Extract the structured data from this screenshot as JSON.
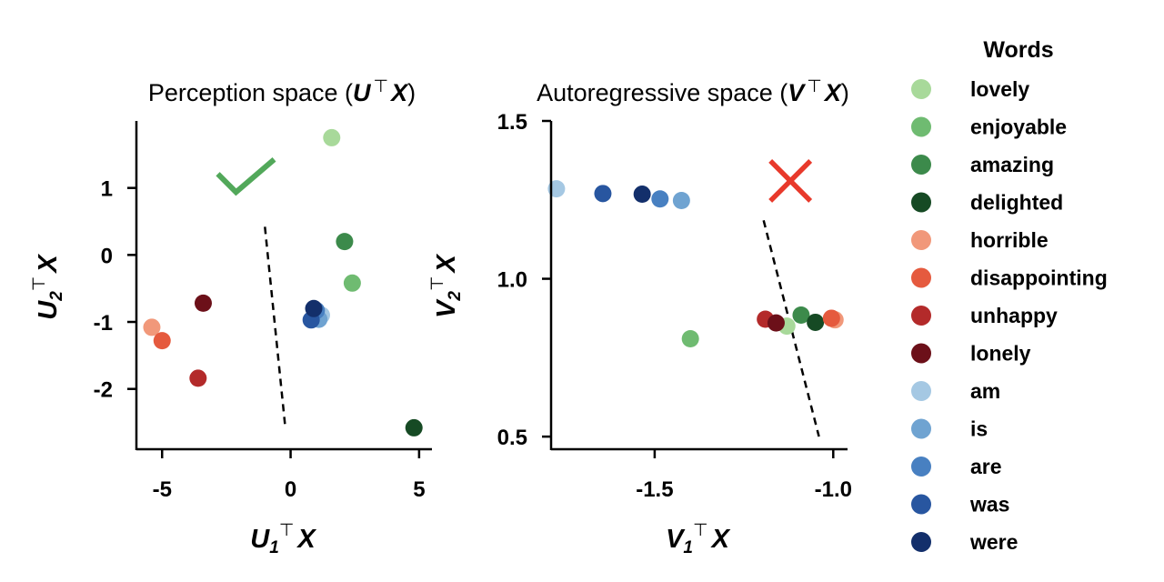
{
  "chart_data": [
    {
      "type": "scatter",
      "title_prefix": "Perception space (",
      "title_math": "U",
      "title_sup": "⊤",
      "title_math_2": "X",
      "title_suffix": ")",
      "xlabel": {
        "main": "U",
        "sub": "1",
        "sup": "⊤",
        "tail": "X"
      },
      "ylabel": {
        "main": "U",
        "sub": "2",
        "sup": "⊤",
        "tail": "X"
      },
      "xlim": [
        -6,
        5.5
      ],
      "ylim": [
        -2.9,
        2.0
      ],
      "xticks": [
        -5,
        0,
        5
      ],
      "xtick_labels": [
        "-5",
        "0",
        "5"
      ],
      "yticks": [
        1,
        0,
        -1,
        -2
      ],
      "ytick_labels": [
        "1",
        "0",
        "-1",
        "-2"
      ],
      "points": [
        {
          "word": "lovely",
          "x": 1.6,
          "y": 1.75
        },
        {
          "word": "enjoyable",
          "x": 2.4,
          "y": -0.42
        },
        {
          "word": "amazing",
          "x": 2.1,
          "y": 0.2
        },
        {
          "word": "delighted",
          "x": 4.8,
          "y": -2.58
        },
        {
          "word": "horrible",
          "x": -5.4,
          "y": -1.08
        },
        {
          "word": "disappointing",
          "x": -5.0,
          "y": -1.28
        },
        {
          "word": "unhappy",
          "x": -3.6,
          "y": -1.84
        },
        {
          "word": "lonely",
          "x": -3.4,
          "y": -0.72
        },
        {
          "word": "am",
          "x": 1.2,
          "y": -0.9
        },
        {
          "word": "is",
          "x": 1.1,
          "y": -0.96
        },
        {
          "word": "are",
          "x": 1.0,
          "y": -0.83
        },
        {
          "word": "was",
          "x": 0.8,
          "y": -0.97
        },
        {
          "word": "were",
          "x": 0.9,
          "y": -0.8
        }
      ],
      "boundary": [
        [
          -1.0,
          0.42
        ],
        [
          -0.2,
          -2.6
        ]
      ],
      "marker": "check",
      "marker_color": "#52a85a",
      "marker_position": [
        -1.7,
        1.1
      ]
    },
    {
      "type": "scatter",
      "title_prefix": "Autoregressive space (",
      "title_math": "V",
      "title_sup": "⊤",
      "title_math_2": "X",
      "title_suffix": ")",
      "xlabel": {
        "main": "V",
        "sub": "1",
        "sup": "⊤",
        "tail": "X"
      },
      "ylabel": {
        "main": "V",
        "sub": "2",
        "sup": "⊤",
        "tail": "X"
      },
      "xlim": [
        -1.79,
        -0.96
      ],
      "ylim": [
        0.46,
        1.5
      ],
      "xticks": [
        -1.5,
        -1.0
      ],
      "xtick_labels": [
        "-1.5",
        "-1.0"
      ],
      "yticks": [
        1.5,
        1.0,
        0.5
      ],
      "ytick_labels": [
        "1.5",
        "1.0",
        "0.5"
      ],
      "points": [
        {
          "word": "lovely",
          "x": -1.13,
          "y": 0.85
        },
        {
          "word": "enjoyable",
          "x": -1.4,
          "y": 0.81
        },
        {
          "word": "amazing",
          "x": -1.09,
          "y": 0.885
        },
        {
          "word": "delighted",
          "x": -1.05,
          "y": 0.862
        },
        {
          "word": "horrible",
          "x": -0.995,
          "y": 0.87
        },
        {
          "word": "disappointing",
          "x": -1.005,
          "y": 0.875
        },
        {
          "word": "unhappy",
          "x": -1.19,
          "y": 0.872
        },
        {
          "word": "lonely",
          "x": -1.16,
          "y": 0.86
        },
        {
          "word": "am",
          "x": -1.775,
          "y": 1.285
        },
        {
          "word": "is",
          "x": -1.425,
          "y": 1.248
        },
        {
          "word": "are",
          "x": -1.485,
          "y": 1.253
        },
        {
          "word": "was",
          "x": -1.645,
          "y": 1.27
        },
        {
          "word": "were",
          "x": -1.535,
          "y": 1.268
        }
      ],
      "boundary": [
        [
          -1.195,
          1.185
        ],
        [
          -1.04,
          0.5
        ]
      ],
      "marker": "cross",
      "marker_color": "#e8392b",
      "marker_position": [
        -1.12,
        1.31
      ]
    }
  ],
  "legend": {
    "title": "Words",
    "placement": "right",
    "items": [
      {
        "label": "lovely",
        "color": "#a8d99a"
      },
      {
        "label": "enjoyable",
        "color": "#6fbb71"
      },
      {
        "label": "amazing",
        "color": "#3c8a4b"
      },
      {
        "label": "delighted",
        "color": "#164a24"
      },
      {
        "label": "horrible",
        "color": "#f1987a"
      },
      {
        "label": "disappointing",
        "color": "#e55a3e"
      },
      {
        "label": "unhappy",
        "color": "#b32a2a"
      },
      {
        "label": "lonely",
        "color": "#6c1019"
      },
      {
        "label": "am",
        "color": "#a5c8e3"
      },
      {
        "label": "is",
        "color": "#6fa3d1"
      },
      {
        "label": "are",
        "color": "#4880c1"
      },
      {
        "label": "was",
        "color": "#2856a0"
      },
      {
        "label": "were",
        "color": "#132f6b"
      }
    ]
  }
}
